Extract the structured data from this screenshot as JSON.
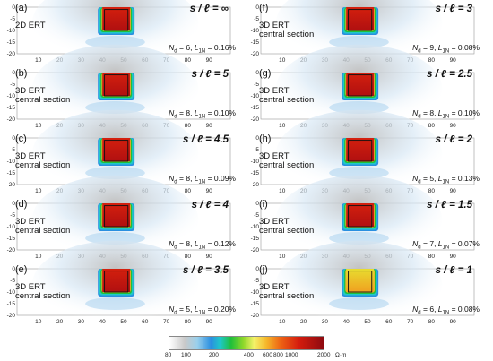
{
  "panels": [
    {
      "label": "(a)",
      "ratio": "s / ℓ = ∞",
      "method": [
        "2D ERT"
      ],
      "nd": "6",
      "lin": "0.16%",
      "zone_color": "#d4200e"
    },
    {
      "label": "(b)",
      "ratio": "s / ℓ = 5",
      "method": [
        "3D ERT",
        "central section"
      ],
      "nd": "8",
      "lin": "0.10%",
      "zone_color": "#d4200e"
    },
    {
      "label": "(c)",
      "ratio": "s / ℓ = 4.5",
      "method": [
        "3D ERT",
        "central section"
      ],
      "nd": "8",
      "lin": "0.09%",
      "zone_color": "#d4200e"
    },
    {
      "label": "(d)",
      "ratio": "s / ℓ = 4",
      "method": [
        "3D ERT",
        "central section"
      ],
      "nd": "8",
      "lin": "0.12%",
      "zone_color": "#d4200e"
    },
    {
      "label": "(e)",
      "ratio": "s / ℓ = 3.5",
      "method": [
        "3D ERT",
        "central section"
      ],
      "nd": "5",
      "lin": "0.20%",
      "zone_color": "#d4200e"
    },
    {
      "label": "(f)",
      "ratio": "s / ℓ = 3",
      "method": [
        "3D ERT",
        "central section"
      ],
      "nd": "9",
      "lin": "0.08%",
      "zone_color": "#d4200e"
    },
    {
      "label": "(g)",
      "ratio": "s / ℓ = 2.5",
      "method": [
        "3D ERT",
        "central section"
      ],
      "nd": "8",
      "lin": "0.10%",
      "zone_color": "#d4200e"
    },
    {
      "label": "(h)",
      "ratio": "s / ℓ = 2",
      "method": [
        "3D ERT",
        "central section"
      ],
      "nd": "5",
      "lin": "0.13%",
      "zone_color": "#d4200e"
    },
    {
      "label": "(i)",
      "ratio": "s / ℓ = 1.5",
      "method": [
        "3D ERT",
        "central section"
      ],
      "nd": "7",
      "lin": "0.07%",
      "zone_color": "#d4200e"
    },
    {
      "label": "(j)",
      "ratio": "s / ℓ = 1",
      "method": [
        "3D ERT",
        "central section"
      ],
      "nd": "6",
      "lin": "0.08%",
      "zone_color": "#e8dd30"
    }
  ],
  "stats_labels": {
    "nd": "N",
    "nd_sub": "d",
    "lin": "L",
    "lin_sub": "1N"
  },
  "y_ticks": [
    "0",
    "-5",
    "-10",
    "-15",
    "-20"
  ],
  "x_ticks": [
    "10",
    "20",
    "30",
    "40",
    "50",
    "60",
    "70",
    "80",
    "90"
  ],
  "x_range": [
    0,
    100
  ],
  "y_range": [
    -20,
    0
  ],
  "colorbar": {
    "ticks": [
      "80",
      "100",
      "200",
      "400",
      "600",
      "800",
      "1000",
      "2000"
    ],
    "unit": "Ω·m",
    "colors": [
      "#ffffff",
      "#c9c9c9",
      "#9ad0ec",
      "#2a8fe0",
      "#1fc8c8",
      "#1fbf3a",
      "#8fd82a",
      "#f5f26a",
      "#f5b62a",
      "#ee6414",
      "#d41c0e",
      "#8e0a10"
    ]
  }
}
